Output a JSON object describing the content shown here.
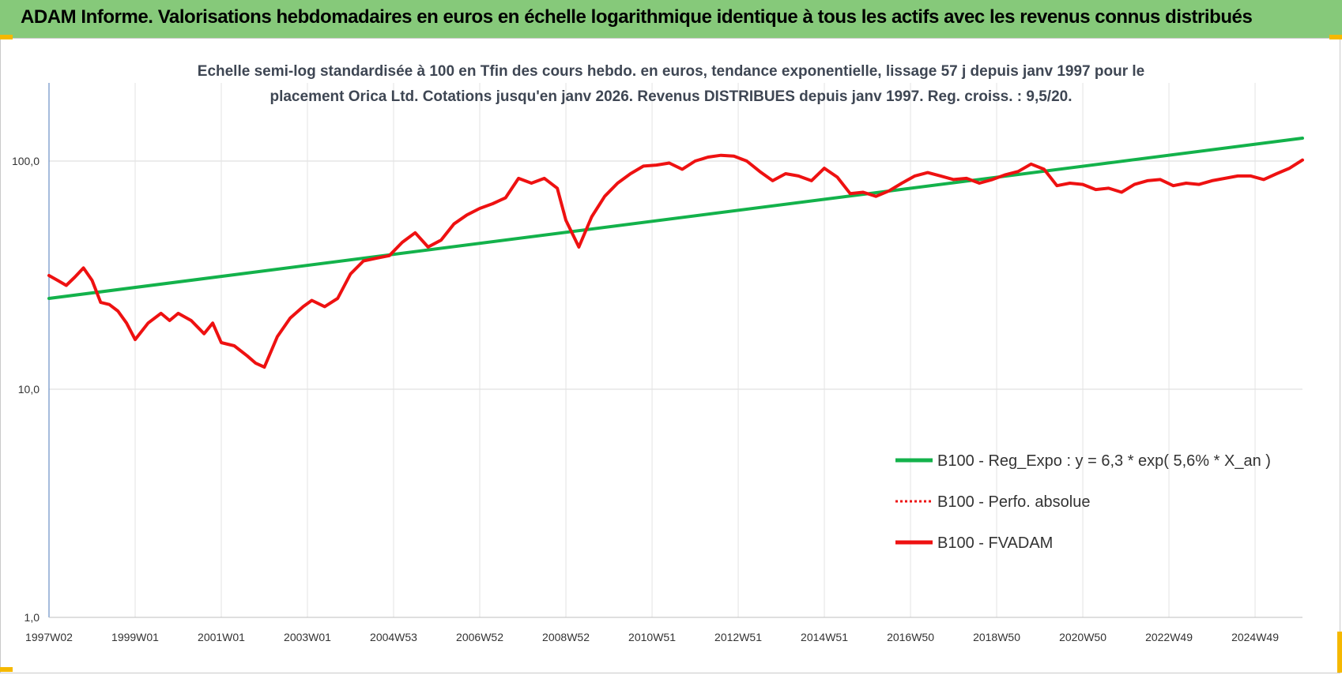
{
  "header": {
    "title": "ADAM Informe. Valorisations hebdomadaires en euros en échelle logarithmique identique à tous les actifs avec les revenus connus distribués"
  },
  "colors": {
    "header_bg": "#86c97a",
    "corner_marks": "#f5b800",
    "trend_line": "#13b24b",
    "fvadam_line": "#ee1111",
    "gridline": "#d9d9d9"
  },
  "chart_data": {
    "type": "line",
    "y_scale": "log",
    "title_lines": [
      "Echelle semi-log standardisée à 100 en Tfin des cours hebdo. en euros, tendance exponentielle, lissage 57 j depuis janv 1997 pour le",
      "placement Orica Ltd. Cotations jusqu'en janv 2026. Revenus DISTRIBUES depuis janv 1997. Reg. croiss. : 9,5/20."
    ],
    "ylim": [
      1,
      220
    ],
    "yticks": [
      "1,0",
      "10,0",
      "100,0"
    ],
    "xlim": [
      1997.0,
      2026.1
    ],
    "xticks": [
      {
        "label": "1997W02",
        "x": 1997.0
      },
      {
        "label": "1999W01",
        "x": 1999.0
      },
      {
        "label": "2001W01",
        "x": 2001.0
      },
      {
        "label": "2003W01",
        "x": 2003.0
      },
      {
        "label": "2004W53",
        "x": 2005.0
      },
      {
        "label": "2006W52",
        "x": 2007.0
      },
      {
        "label": "2008W52",
        "x": 2009.0
      },
      {
        "label": "2010W51",
        "x": 2011.0
      },
      {
        "label": "2012W51",
        "x": 2013.0
      },
      {
        "label": "2014W51",
        "x": 2015.0
      },
      {
        "label": "2016W50",
        "x": 2017.0
      },
      {
        "label": "2018W50",
        "x": 2019.0
      },
      {
        "label": "2020W50",
        "x": 2021.0
      },
      {
        "label": "2022W49",
        "x": 2023.0
      },
      {
        "label": "2024W49",
        "x": 2025.0
      }
    ],
    "grid": true,
    "legend_position": "bottom-right",
    "series": [
      {
        "name": "B100 - Reg_Expo : y = 6,3 * exp( 5,6% *  X_an )",
        "color": "#13b24b",
        "style": "solid",
        "x": [
          1997.0,
          2026.1
        ],
        "y": [
          25.0,
          126.0
        ]
      },
      {
        "name": "B100 - Perfo. absolue",
        "color": "#ee1111",
        "style": "dotted",
        "x": [],
        "y": []
      },
      {
        "name": "B100 - FVADAM",
        "color": "#ee1111",
        "style": "solid",
        "x": [
          1997.0,
          1997.2,
          1997.4,
          1997.6,
          1997.8,
          1998.0,
          1998.2,
          1998.4,
          1998.6,
          1998.8,
          1999.0,
          1999.3,
          1999.6,
          1999.8,
          2000.0,
          2000.3,
          2000.6,
          2000.8,
          2001.0,
          2001.3,
          2001.6,
          2001.8,
          2002.0,
          2002.3,
          2002.6,
          2002.9,
          2003.1,
          2003.4,
          2003.7,
          2004.0,
          2004.3,
          2004.6,
          2004.9,
          2005.2,
          2005.5,
          2005.8,
          2006.1,
          2006.4,
          2006.7,
          2007.0,
          2007.3,
          2007.6,
          2007.9,
          2008.2,
          2008.5,
          2008.8,
          2009.0,
          2009.3,
          2009.6,
          2009.9,
          2010.2,
          2010.5,
          2010.8,
          2011.1,
          2011.4,
          2011.7,
          2012.0,
          2012.3,
          2012.6,
          2012.9,
          2013.2,
          2013.5,
          2013.8,
          2014.1,
          2014.4,
          2014.7,
          2015.0,
          2015.3,
          2015.6,
          2015.9,
          2016.2,
          2016.5,
          2016.8,
          2017.1,
          2017.4,
          2017.7,
          2018.0,
          2018.3,
          2018.6,
          2018.9,
          2019.2,
          2019.5,
          2019.8,
          2020.1,
          2020.4,
          2020.7,
          2021.0,
          2021.3,
          2021.6,
          2021.9,
          2022.2,
          2022.5,
          2022.8,
          2023.1,
          2023.4,
          2023.7,
          2024.0,
          2024.3,
          2024.6,
          2024.9,
          2025.2,
          2025.5,
          2025.8,
          2026.1
        ],
        "y": [
          31.5,
          30.0,
          28.5,
          31.0,
          34.0,
          30.0,
          24.0,
          23.5,
          22.0,
          19.5,
          16.5,
          19.5,
          21.5,
          20.0,
          21.5,
          20.0,
          17.5,
          19.5,
          16.0,
          15.5,
          14.0,
          13.0,
          12.5,
          17.0,
          20.5,
          23.0,
          24.5,
          23.0,
          25.0,
          32.0,
          36.5,
          37.5,
          38.5,
          44.0,
          48.5,
          42.0,
          45.0,
          53.0,
          58.0,
          62.0,
          65.0,
          69.0,
          84.0,
          80.0,
          84.0,
          76.0,
          55.0,
          42.0,
          57.0,
          70.0,
          80.0,
          88.0,
          95.0,
          96.0,
          98.0,
          92.0,
          100.0,
          104.0,
          106.0,
          105.0,
          100.0,
          90.0,
          82.0,
          88.0,
          86.0,
          82.0,
          93.0,
          85.0,
          72.0,
          73.0,
          70.0,
          74.0,
          80.0,
          86.0,
          89.0,
          86.0,
          83.0,
          84.0,
          80.0,
          83.0,
          87.0,
          90.0,
          97.0,
          92.0,
          78.0,
          80.0,
          79.0,
          75.0,
          76.0,
          73.0,
          79.0,
          82.0,
          83.0,
          78.0,
          80.0,
          79.0,
          82.0,
          84.0,
          86.0,
          86.0,
          83.0,
          88.0,
          93.0,
          101.0
        ]
      }
    ]
  }
}
